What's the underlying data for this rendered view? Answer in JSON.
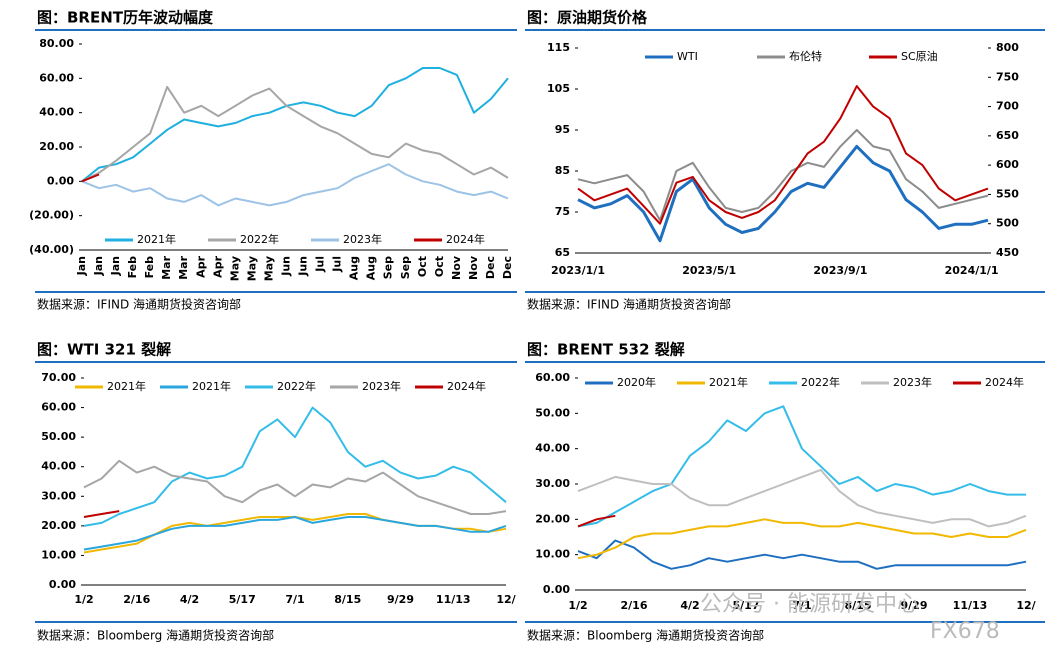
{
  "chart_data": [
    {
      "type": "line",
      "title": "图：BRENT历年波动幅度",
      "source": "数据来源：IFIND   海通期货投资咨询部",
      "categories": [
        "Jan",
        "Jan",
        "Jan",
        "Feb",
        "Feb",
        "Mar",
        "Mar",
        "Apr",
        "Apr",
        "May",
        "May",
        "May",
        "Jun",
        "Jun",
        "Jul",
        "Jul",
        "Aug",
        "Aug",
        "Sep",
        "Sep",
        "Oct",
        "Oct",
        "Nov",
        "Nov",
        "Dec",
        "Dec"
      ],
      "ylim": [
        -40,
        80
      ],
      "yticks": [
        {
          "value": -40,
          "label": "(40.00)"
        },
        {
          "value": -20,
          "label": "(20.00)"
        },
        {
          "value": 0,
          "label": "0.00"
        },
        {
          "value": 20,
          "label": "20.00"
        },
        {
          "value": 40,
          "label": "40.00"
        },
        {
          "value": 60,
          "label": "60.00"
        },
        {
          "value": 80,
          "label": "80.00"
        }
      ],
      "negative_tick_color": "#c00000",
      "rotate_x_labels": true,
      "legend": "bottom",
      "series": [
        {
          "name": "2021年",
          "color": "#1fb0e0",
          "values": [
            0,
            8,
            10,
            14,
            22,
            30,
            36,
            34,
            32,
            34,
            38,
            40,
            44,
            46,
            44,
            40,
            38,
            44,
            56,
            60,
            66,
            66,
            62,
            40,
            48,
            60
          ]
        },
        {
          "name": "2022年",
          "color": "#a6a6a6",
          "values": [
            0,
            5,
            12,
            20,
            28,
            55,
            40,
            44,
            38,
            44,
            50,
            54,
            44,
            38,
            32,
            28,
            22,
            16,
            14,
            22,
            18,
            16,
            10,
            4,
            8,
            2
          ]
        },
        {
          "name": "2023年",
          "color": "#9dc3e6",
          "values": [
            0,
            -4,
            -2,
            -6,
            -4,
            -10,
            -12,
            -8,
            -14,
            -10,
            -12,
            -14,
            -12,
            -8,
            -6,
            -4,
            2,
            6,
            10,
            4,
            0,
            -2,
            -6,
            -8,
            -6,
            -10
          ]
        },
        {
          "name": "2024年",
          "color": "#c00000",
          "values": [
            0,
            4,
            null,
            null,
            null,
            null,
            null,
            null,
            null,
            null,
            null,
            null,
            null,
            null,
            null,
            null,
            null,
            null,
            null,
            null,
            null,
            null,
            null,
            null,
            null,
            null
          ]
        }
      ]
    },
    {
      "type": "line",
      "title": "图：原油期货价格",
      "source": "数据来源：IFIND   海通期货投资咨询部",
      "categories": [
        "2023/1/1",
        null,
        null,
        null,
        null,
        null,
        null,
        null,
        "2023/5/1",
        null,
        null,
        null,
        null,
        null,
        null,
        null,
        "2023/9/1",
        null,
        null,
        null,
        null,
        null,
        null,
        null,
        "2024/1/1",
        null
      ],
      "ylim": [
        65,
        115
      ],
      "yticks": [
        65,
        75,
        85,
        95,
        105,
        115
      ],
      "y2lim": [
        450,
        800
      ],
      "y2ticks": [
        450,
        500,
        550,
        600,
        650,
        700,
        750,
        800
      ],
      "legend": "top",
      "series": [
        {
          "name": "WTI",
          "color": "#1f6fc0",
          "values": [
            78,
            76,
            77,
            79,
            75,
            68,
            80,
            83,
            76,
            72,
            70,
            71,
            75,
            80,
            82,
            81,
            86,
            91,
            87,
            85,
            78,
            75,
            71,
            72,
            72,
            73
          ]
        },
        {
          "name": "布伦特",
          "color": "#8c8c8c",
          "values": [
            83,
            82,
            83,
            84,
            80,
            73,
            85,
            87,
            81,
            76,
            75,
            76,
            80,
            85,
            87,
            86,
            91,
            95,
            91,
            90,
            83,
            80,
            76,
            77,
            78,
            79
          ]
        },
        {
          "name": "SC原油",
          "color": "#c00000",
          "axis": "y2",
          "values": [
            560,
            540,
            550,
            560,
            530,
            500,
            570,
            580,
            540,
            520,
            510,
            520,
            540,
            580,
            620,
            640,
            680,
            735,
            700,
            680,
            620,
            600,
            560,
            540,
            550,
            560
          ]
        }
      ]
    },
    {
      "type": "line",
      "title": "图：WTI 321 裂解",
      "source": "数据来源：Bloomberg   海通期货投资咨询部",
      "categories": [
        "1/2",
        null,
        null,
        "2/16",
        null,
        null,
        "4/2",
        null,
        null,
        "5/17",
        null,
        null,
        "7/1",
        null,
        null,
        "8/15",
        null,
        null,
        "9/29",
        null,
        null,
        "11/13",
        null,
        null,
        "12/"
      ],
      "ylim": [
        0,
        70
      ],
      "yticks": [
        {
          "value": 0,
          "label": "0.00"
        },
        {
          "value": 10,
          "label": "10.00"
        },
        {
          "value": 20,
          "label": "20.00"
        },
        {
          "value": 30,
          "label": "30.00"
        },
        {
          "value": 40,
          "label": "40.00"
        },
        {
          "value": 50,
          "label": "50.00"
        },
        {
          "value": 60,
          "label": "60.00"
        },
        {
          "value": 70,
          "label": "70.00"
        }
      ],
      "legend": "top",
      "series": [
        {
          "name": "2021年",
          "color": "#f0b800",
          "values": [
            11,
            12,
            13,
            14,
            17,
            20,
            21,
            20,
            21,
            22,
            23,
            23,
            23,
            22,
            23,
            24,
            24,
            22,
            21,
            20,
            20,
            19,
            19,
            18,
            19
          ]
        },
        {
          "name": "2021年",
          "color": "#2aa6df",
          "values": [
            12,
            13,
            14,
            15,
            17,
            19,
            20,
            20,
            20,
            21,
            22,
            22,
            23,
            21,
            22,
            23,
            23,
            22,
            21,
            20,
            20,
            19,
            18,
            18,
            20
          ]
        },
        {
          "name": "2022年",
          "color": "#33bde8",
          "values": [
            20,
            21,
            24,
            26,
            28,
            35,
            38,
            36,
            37,
            40,
            52,
            56,
            50,
            60,
            55,
            45,
            40,
            42,
            38,
            36,
            37,
            40,
            38,
            33,
            28
          ]
        },
        {
          "name": "2023年",
          "color": "#a6a6a6",
          "values": [
            33,
            36,
            42,
            38,
            40,
            37,
            36,
            35,
            30,
            28,
            32,
            34,
            30,
            34,
            33,
            36,
            35,
            38,
            34,
            30,
            28,
            26,
            24,
            24,
            25
          ]
        },
        {
          "name": "2024年",
          "color": "#c00000",
          "values": [
            23,
            24,
            25,
            null,
            null,
            null,
            null,
            null,
            null,
            null,
            null,
            null,
            null,
            null,
            null,
            null,
            null,
            null,
            null,
            null,
            null,
            null,
            null,
            null,
            null
          ]
        }
      ]
    },
    {
      "type": "line",
      "title": "图：BRENT 532 裂解",
      "source": "数据来源：Bloomberg   海通期货投资咨询部",
      "categories": [
        "1/2",
        null,
        null,
        "2/16",
        null,
        null,
        "4/2",
        null,
        null,
        "5/17",
        null,
        null,
        "7/1",
        null,
        null,
        "8/15",
        null,
        null,
        "9/29",
        null,
        null,
        "11/13",
        null,
        null,
        "12/"
      ],
      "ylim": [
        0,
        60
      ],
      "yticks": [
        {
          "value": 0,
          "label": "0.00"
        },
        {
          "value": 10,
          "label": "10.00"
        },
        {
          "value": 20,
          "label": "20.00"
        },
        {
          "value": 30,
          "label": "30.00"
        },
        {
          "value": 40,
          "label": "40.00"
        },
        {
          "value": 50,
          "label": "50.00"
        },
        {
          "value": 60,
          "label": "60.00"
        }
      ],
      "legend": "top",
      "series": [
        {
          "name": "2020年",
          "color": "#1f6fc0",
          "values": [
            11,
            9,
            14,
            12,
            8,
            6,
            7,
            9,
            8,
            9,
            10,
            9,
            10,
            9,
            8,
            8,
            6,
            7,
            7,
            7,
            7,
            7,
            7,
            7,
            8
          ]
        },
        {
          "name": "2021年",
          "color": "#f0b800",
          "values": [
            9,
            10,
            12,
            15,
            16,
            16,
            17,
            18,
            18,
            19,
            20,
            19,
            19,
            18,
            18,
            19,
            18,
            17,
            16,
            16,
            15,
            16,
            15,
            15,
            17
          ]
        },
        {
          "name": "2022年",
          "color": "#33bde8",
          "values": [
            18,
            19,
            22,
            25,
            28,
            30,
            38,
            42,
            48,
            45,
            50,
            52,
            40,
            35,
            30,
            32,
            28,
            30,
            29,
            27,
            28,
            30,
            28,
            27,
            27
          ]
        },
        {
          "name": "2023年",
          "color": "#bfbfbf",
          "values": [
            28,
            30,
            32,
            31,
            30,
            30,
            26,
            24,
            24,
            26,
            28,
            30,
            32,
            34,
            28,
            24,
            22,
            21,
            20,
            19,
            20,
            20,
            18,
            19,
            21
          ]
        },
        {
          "name": "2024年",
          "color": "#c00000",
          "values": [
            18,
            20,
            21,
            null,
            null,
            null,
            null,
            null,
            null,
            null,
            null,
            null,
            null,
            null,
            null,
            null,
            null,
            null,
            null,
            null,
            null,
            null,
            null,
            null,
            null
          ]
        }
      ]
    }
  ],
  "watermark": {
    "text": "公众号 · 能源研发中心",
    "brand": "FX678"
  }
}
